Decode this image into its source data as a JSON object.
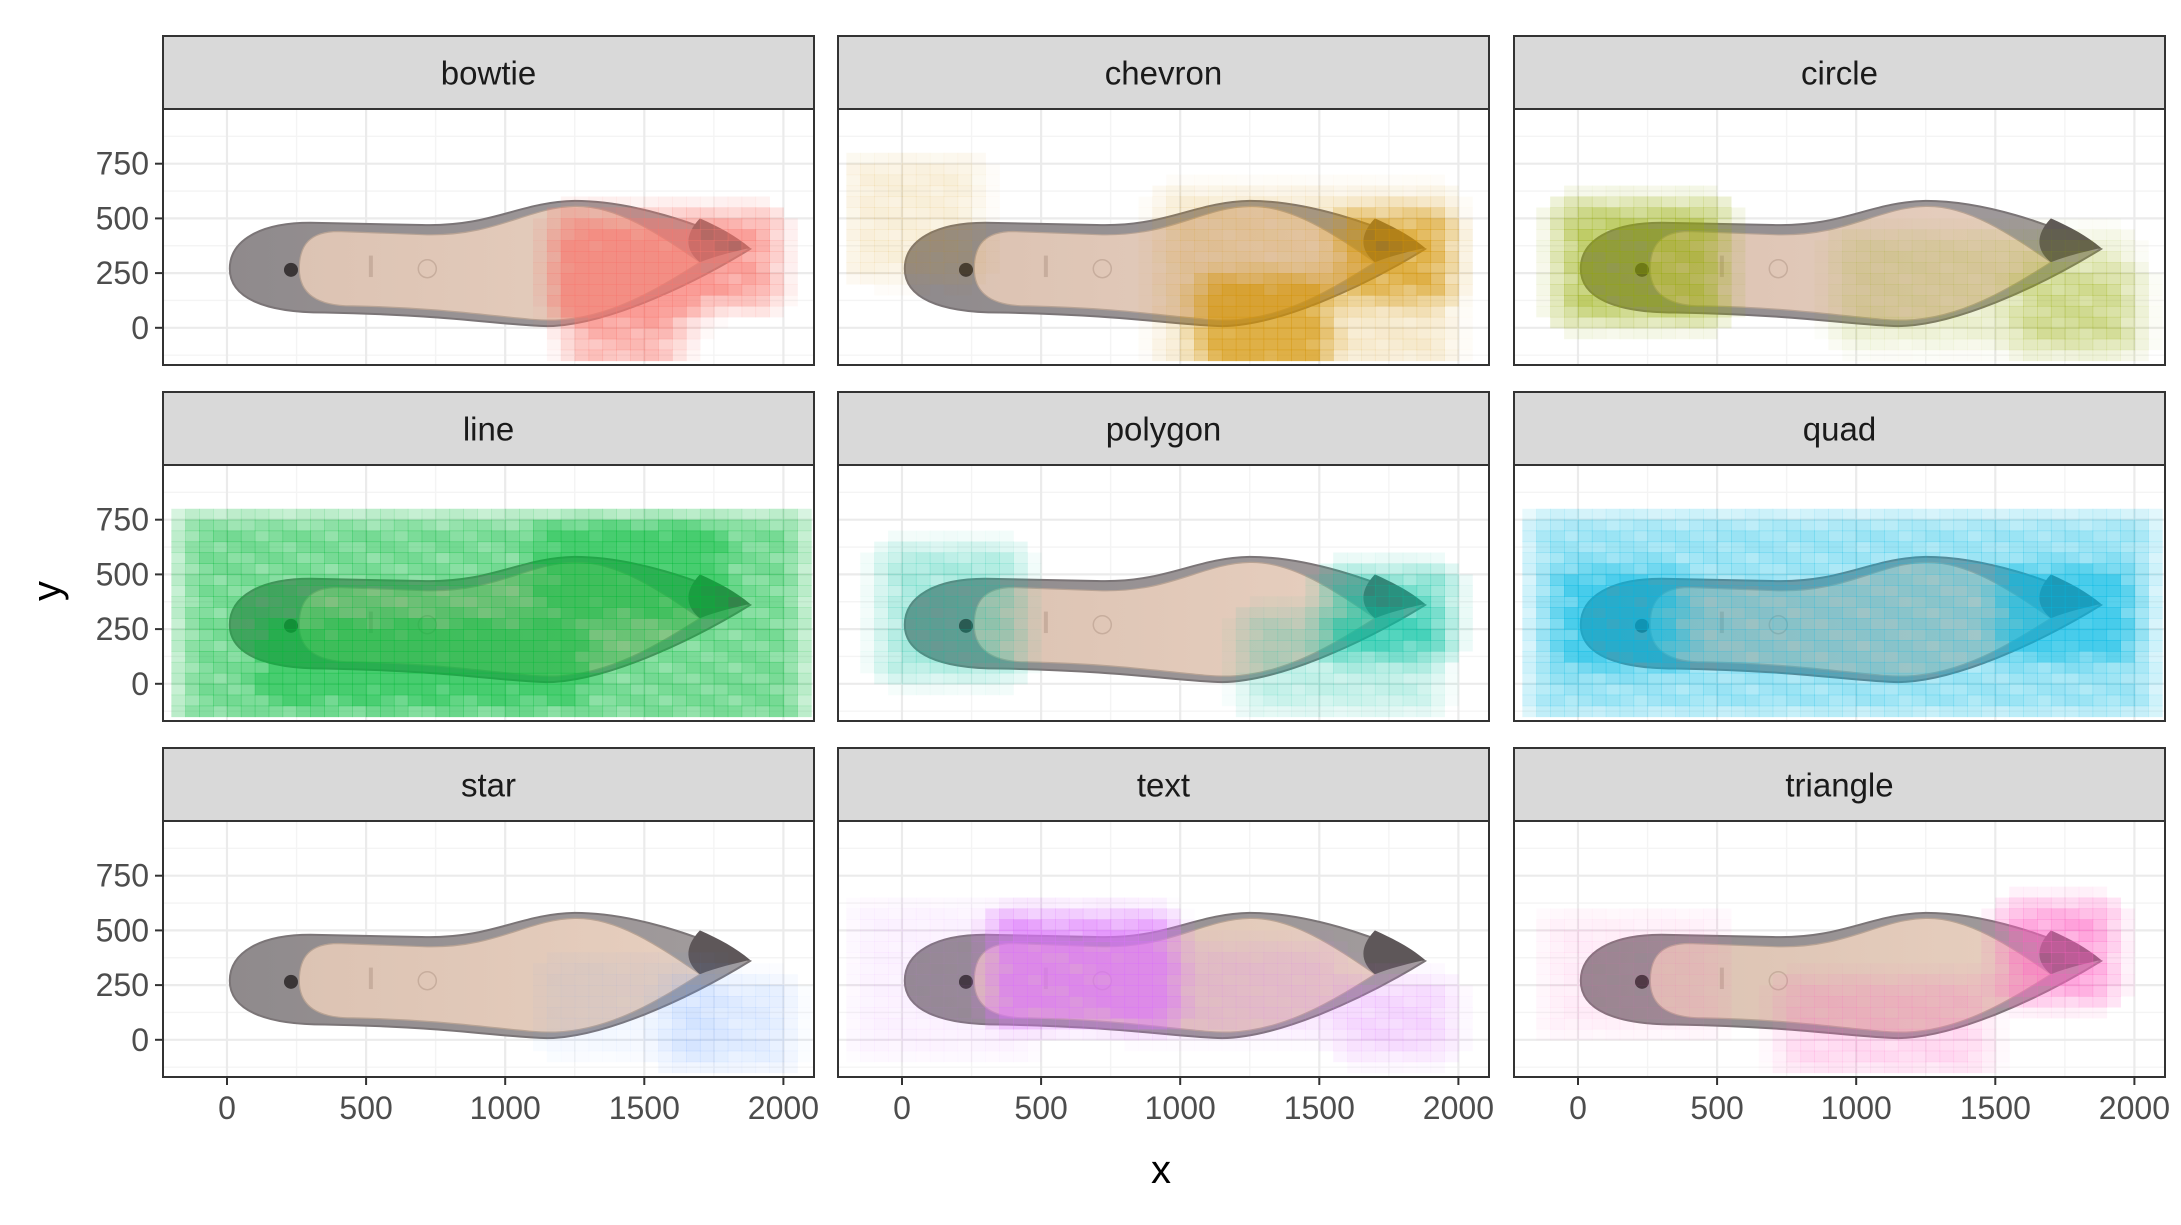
{
  "chart_data": {
    "type": "heatmap",
    "title": "",
    "xlabel": "x",
    "ylabel": "y",
    "xlim": [
      -230,
      2110
    ],
    "ylim": [
      -170,
      1000
    ],
    "x_ticks": [
      0,
      500,
      1000,
      1500,
      2000
    ],
    "y_ticks": [
      0,
      250,
      500,
      750
    ],
    "grid": true,
    "background_image": "shoe-sole-photo",
    "image_extent": {
      "x": [
        0,
        1900
      ],
      "y": [
        0,
        580
      ]
    },
    "cell_size": 50,
    "panels": [
      {
        "facet": "bowtie",
        "color": "#F8766D",
        "hotspots": [
          {
            "x": [
              1250,
              1900
            ],
            "y": [
              180,
              450
            ],
            "intensity": 0.7
          },
          {
            "x": [
              1300,
              1550
            ],
            "y": [
              -120,
              100
            ],
            "intensity": 0.5
          },
          {
            "x": [
              1250,
              1650
            ],
            "y": [
              60,
              320
            ],
            "intensity": 0.25
          }
        ]
      },
      {
        "facet": "chevron",
        "color": "#D39200",
        "hotspots": [
          {
            "x": [
              1150,
              1450
            ],
            "y": [
              -130,
              150
            ],
            "intensity": 0.7
          },
          {
            "x": [
              1650,
              1900
            ],
            "y": [
              200,
              450
            ],
            "intensity": 0.55
          },
          {
            "x": [
              1000,
              1900
            ],
            "y": [
              -100,
              550
            ],
            "intensity": 0.2
          },
          {
            "x": [
              -130,
              200
            ],
            "y": [
              300,
              700
            ],
            "intensity": 0.15
          }
        ]
      },
      {
        "facet": "circle",
        "color": "#93AA00",
        "hotspots": [
          {
            "x": [
              0,
              450
            ],
            "y": [
              100,
              500
            ],
            "intensity": 0.6
          },
          {
            "x": [
              1000,
              1900
            ],
            "y": [
              0,
              350
            ],
            "intensity": 0.2
          },
          {
            "x": [
              1650,
              1950
            ],
            "y": [
              -50,
              200
            ],
            "intensity": 0.25
          }
        ]
      },
      {
        "facet": "line",
        "color": "#00BA38",
        "hotspots": [
          {
            "x": [
              -100,
              2000
            ],
            "y": [
              -120,
              700
            ],
            "intensity": 0.55
          },
          {
            "x": [
              200,
              1200
            ],
            "y": [
              0,
              200
            ],
            "intensity": 0.35
          },
          {
            "x": [
              1200,
              1700
            ],
            "y": [
              400,
              650
            ],
            "intensity": 0.35
          }
        ]
      },
      {
        "facet": "polygon",
        "color": "#00C19F",
        "hotspots": [
          {
            "x": [
              1600,
              1900
            ],
            "y": [
              200,
              450
            ],
            "intensity": 0.55
          },
          {
            "x": [
              0,
              350
            ],
            "y": [
              100,
              550
            ],
            "intensity": 0.35
          },
          {
            "x": [
              1300,
              1850
            ],
            "y": [
              -50,
              250
            ],
            "intensity": 0.25
          }
        ]
      },
      {
        "facet": "quad",
        "color": "#00B9E3",
        "hotspots": [
          {
            "x": [
              -100,
              2000
            ],
            "y": [
              -80,
              700
            ],
            "intensity": 0.4
          },
          {
            "x": [
              1600,
              1900
            ],
            "y": [
              200,
              450
            ],
            "intensity": 0.5
          },
          {
            "x": [
              0,
              300
            ],
            "y": [
              150,
              450
            ],
            "intensity": 0.4
          }
        ]
      },
      {
        "facet": "star",
        "color": "#619CFF",
        "hotspots": [
          {
            "x": [
              1650,
              1950
            ],
            "y": [
              -50,
              200
            ],
            "intensity": 0.2
          },
          {
            "x": [
              1200,
              1700
            ],
            "y": [
              0,
              300
            ],
            "intensity": 0.08
          }
        ]
      },
      {
        "facet": "text",
        "color": "#DB72FB",
        "hotspots": [
          {
            "x": [
              400,
              900
            ],
            "y": [
              150,
              500
            ],
            "intensity": 0.75
          },
          {
            "x": [
              850,
              1500
            ],
            "y": [
              100,
              350
            ],
            "intensity": 0.2
          },
          {
            "x": [
              1650,
              1900
            ],
            "y": [
              0,
              200
            ],
            "intensity": 0.3
          },
          {
            "x": [
              -100,
              400
            ],
            "y": [
              0,
              550
            ],
            "intensity": 0.1
          }
        ]
      },
      {
        "facet": "triangle",
        "color": "#FF61C3",
        "hotspots": [
          {
            "x": [
              1600,
              1850
            ],
            "y": [
              250,
              550
            ],
            "intensity": 0.6
          },
          {
            "x": [
              800,
              1400
            ],
            "y": [
              -80,
              200
            ],
            "intensity": 0.25
          },
          {
            "x": [
              -50,
              450
            ],
            "y": [
              100,
              500
            ],
            "intensity": 0.12
          }
        ]
      }
    ]
  }
}
